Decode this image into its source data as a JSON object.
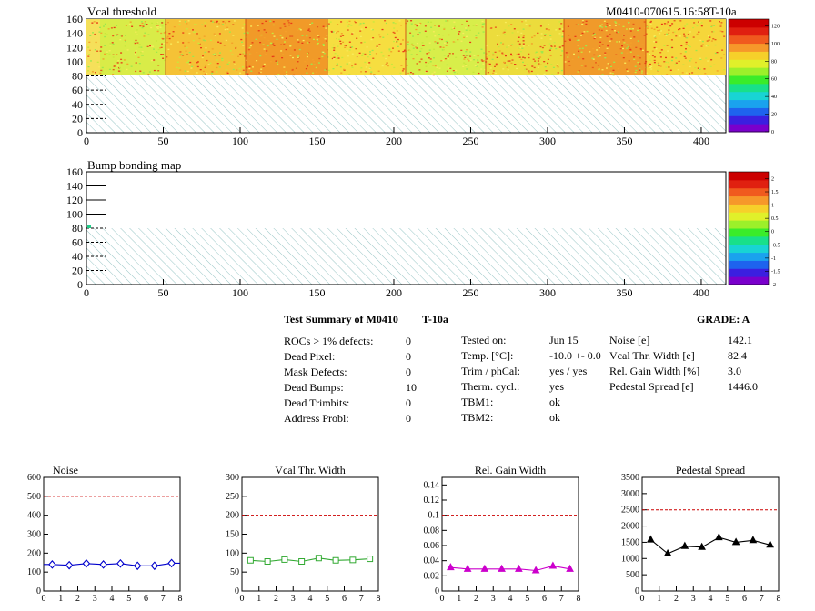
{
  "header": {
    "left_title": "Vcal threshold",
    "right_title": "M0410-070615.16:58T-10a",
    "bump_title": "Bump bonding map"
  },
  "maps": {
    "x_ticks": [
      "0",
      "50",
      "100",
      "150",
      "200",
      "250",
      "300",
      "350",
      "400"
    ],
    "y_ticks": [
      "0",
      "20",
      "40",
      "60",
      "80",
      "100",
      "120",
      "140",
      "160"
    ],
    "vcal_scale": [
      "0",
      "20",
      "40",
      "60",
      "80",
      "100",
      "120"
    ],
    "bump_scale": [
      "-2",
      "-1.5",
      "-1",
      "-0.5",
      "0",
      "0.5",
      "1",
      "1.5",
      "2"
    ]
  },
  "summary": {
    "title": "Test Summary of M0410",
    "temp_tag": "T-10a",
    "grade_label": "GRADE:  A",
    "col1": [
      {
        "label": "ROCs > 1% defects:",
        "value": "0"
      },
      {
        "label": "Dead Pixel:",
        "value": "0"
      },
      {
        "label": "Mask Defects:",
        "value": "0"
      },
      {
        "label": "Dead Bumps:",
        "value": "10"
      },
      {
        "label": "Dead Trimbits:",
        "value": "0"
      },
      {
        "label": "Address Probl:",
        "value": "0"
      }
    ],
    "col2": [
      {
        "label": "Tested on:",
        "value": "Jun 15"
      },
      {
        "label": "Temp. [°C]:",
        "value": "-10.0 +- 0.0"
      },
      {
        "label": "Trim / phCal:",
        "value": "yes / yes"
      },
      {
        "label": "Therm. cycl.:",
        "value": "yes"
      },
      {
        "label": "TBM1:",
        "value": "ok"
      },
      {
        "label": "TBM2:",
        "value": "ok"
      }
    ],
    "col3": [
      {
        "label": "Noise [e]",
        "value": "142.1"
      },
      {
        "label": "Vcal Thr. Width [e]",
        "value": "82.4"
      },
      {
        "label": "Rel. Gain Width [%]",
        "value": "3.0"
      },
      {
        "label": "Pedestal Spread [e]",
        "value": "1446.0"
      }
    ]
  },
  "colors": {
    "noise": "#0000cc",
    "vcal": "#33aa33",
    "gain": "#cc00cc",
    "pedestal": "#000000",
    "threshold_line": "#cc0000",
    "hatch": "#7fb8b8"
  },
  "chart_data": [
    {
      "type": "line",
      "title": "Noise",
      "x": [
        0.5,
        1.5,
        2.5,
        3.5,
        4.5,
        5.5,
        6.5,
        7.5
      ],
      "values": [
        140,
        136,
        145,
        140,
        145,
        133,
        133,
        147
      ],
      "ylim": [
        0,
        600
      ],
      "xlim": [
        0,
        8
      ],
      "y_ticks": [
        "0",
        "100",
        "200",
        "300",
        "400",
        "500",
        "600"
      ],
      "x_ticks": [
        "0",
        "1",
        "2",
        "3",
        "4",
        "5",
        "6",
        "7",
        "8"
      ],
      "threshold": 500,
      "marker": "diamond"
    },
    {
      "type": "line",
      "title": "Vcal Thr. Width",
      "x": [
        0.5,
        1.5,
        2.5,
        3.5,
        4.5,
        5.5,
        6.5,
        7.5
      ],
      "values": [
        81,
        78,
        83,
        78,
        87,
        81,
        82,
        85
      ],
      "ylim": [
        0,
        300
      ],
      "xlim": [
        0,
        8
      ],
      "y_ticks": [
        "0",
        "50",
        "100",
        "150",
        "200",
        "250",
        "300"
      ],
      "x_ticks": [
        "0",
        "1",
        "2",
        "3",
        "4",
        "5",
        "6",
        "7",
        "8"
      ],
      "threshold": 200,
      "marker": "square"
    },
    {
      "type": "line",
      "title": "Rel. Gain Width",
      "x": [
        0.5,
        1.5,
        2.5,
        3.5,
        4.5,
        5.5,
        6.5,
        7.5
      ],
      "values": [
        0.031,
        0.029,
        0.029,
        0.029,
        0.029,
        0.027,
        0.033,
        0.029
      ],
      "ylim": [
        0,
        0.15
      ],
      "xlim": [
        0,
        8
      ],
      "y_ticks": [
        "0",
        "0.02",
        "0.04",
        "0.06",
        "0.08",
        "0.1",
        "0.12",
        "0.14"
      ],
      "x_ticks": [
        "0",
        "1",
        "2",
        "3",
        "4",
        "5",
        "6",
        "7",
        "8"
      ],
      "threshold": 0.1,
      "marker": "triangle"
    },
    {
      "type": "line",
      "title": "Pedestal Spread",
      "x": [
        0.5,
        1.5,
        2.5,
        3.5,
        4.5,
        5.5,
        6.5,
        7.5
      ],
      "values": [
        1580,
        1150,
        1380,
        1350,
        1650,
        1500,
        1560,
        1420
      ],
      "ylim": [
        0,
        3500
      ],
      "xlim": [
        0,
        8
      ],
      "y_ticks": [
        "0",
        "500",
        "1000",
        "1500",
        "2000",
        "2500",
        "3000",
        "3500"
      ],
      "x_ticks": [
        "0",
        "1",
        "2",
        "3",
        "4",
        "5",
        "6",
        "7",
        "8"
      ],
      "threshold": 2500,
      "marker": "star"
    }
  ]
}
